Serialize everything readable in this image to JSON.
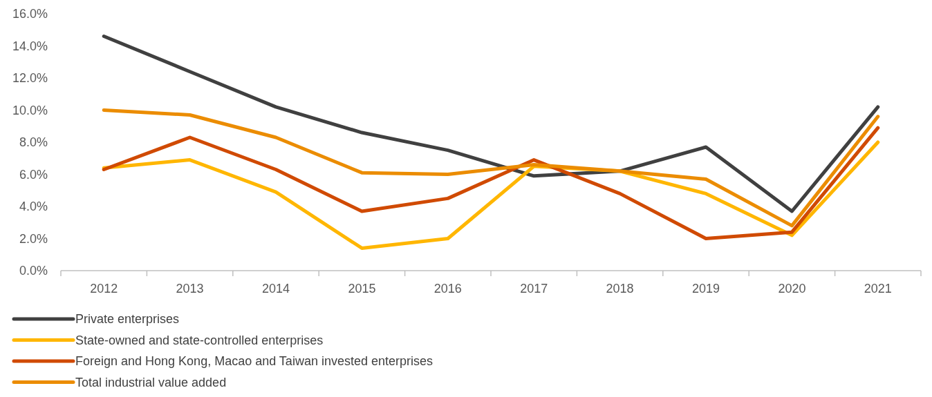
{
  "chart_data": {
    "type": "line",
    "categories": [
      "2012",
      "2013",
      "2014",
      "2015",
      "2016",
      "2017",
      "2018",
      "2019",
      "2020",
      "2021"
    ],
    "series": [
      {
        "name": "Private enterprises",
        "color": "#404040",
        "values": [
          14.6,
          12.4,
          10.2,
          8.6,
          7.5,
          5.9,
          6.2,
          7.7,
          3.7,
          10.2
        ]
      },
      {
        "name": "State-owned and state-controlled enterprises",
        "color": "#ffb600",
        "values": [
          6.4,
          6.9,
          4.9,
          1.4,
          2.0,
          6.5,
          6.2,
          4.8,
          2.2,
          8.0
        ]
      },
      {
        "name": "Foreign and Hong Kong, Macao and Taiwan invested enterprises",
        "color": "#d04a02",
        "values": [
          6.3,
          8.3,
          6.3,
          3.7,
          4.5,
          6.9,
          4.8,
          2.0,
          2.4,
          8.9
        ]
      },
      {
        "name": "Total industrial value added",
        "color": "#eb8c00",
        "values": [
          10.0,
          9.7,
          8.3,
          6.1,
          6.0,
          6.6,
          6.2,
          5.7,
          2.8,
          9.6
        ]
      }
    ],
    "ylim": [
      0,
      16
    ],
    "yticks": [
      {
        "value": 0,
        "label": "0.0%"
      },
      {
        "value": 2,
        "label": "2.0%"
      },
      {
        "value": 4,
        "label": "4.0%"
      },
      {
        "value": 6,
        "label": "6.0%"
      },
      {
        "value": 8,
        "label": "8.0%"
      },
      {
        "value": 10,
        "label": "10.0%"
      },
      {
        "value": 12,
        "label": "12.0%"
      },
      {
        "value": 14,
        "label": "14.0%"
      },
      {
        "value": 16,
        "label": "16.0%"
      }
    ],
    "legend": "bottom",
    "grid": false,
    "marker": "none",
    "line_style": "solid"
  }
}
